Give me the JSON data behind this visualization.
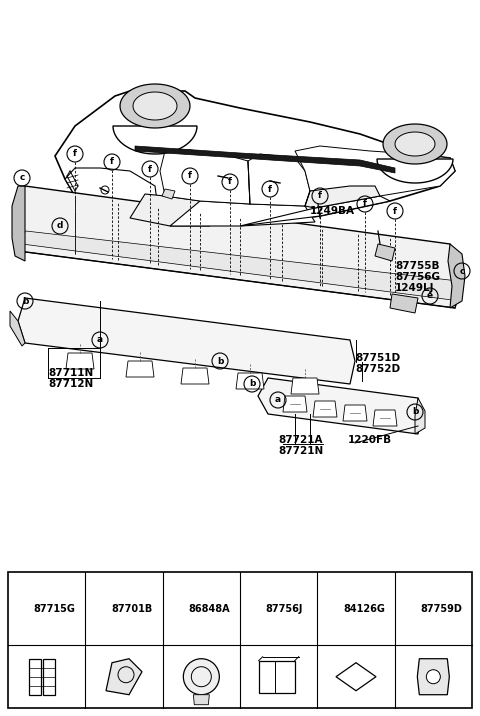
{
  "bg_color": "#ffffff",
  "part_labels": [
    {
      "letter": "a",
      "code": "87715G"
    },
    {
      "letter": "b",
      "code": "87701B"
    },
    {
      "letter": "c",
      "code": "86848A"
    },
    {
      "letter": "d",
      "code": "87756J"
    },
    {
      "letter": "e",
      "code": "84126G"
    },
    {
      "letter": "f",
      "code": "87759D"
    }
  ]
}
